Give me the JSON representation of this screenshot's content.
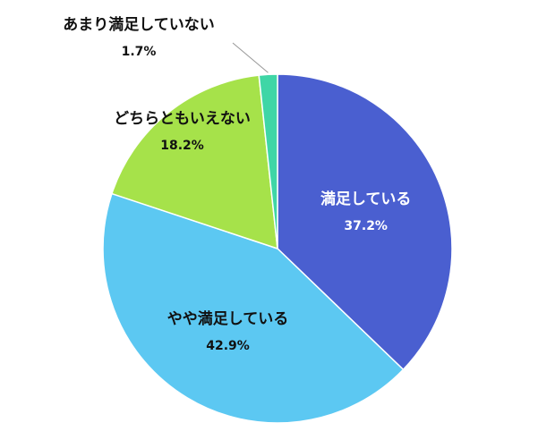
{
  "chart_data": {
    "type": "pie",
    "categories": [
      "満足している",
      "やや満足している",
      "どちらともいえない",
      "あまり満足していない"
    ],
    "values": [
      37.2,
      42.9,
      18.2,
      1.7
    ],
    "value_labels": [
      "37.2%",
      "42.9%",
      "18.2%",
      "1.7%"
    ],
    "colors": [
      "#4a5fd0",
      "#5cc8f2",
      "#a6e24a",
      "#3fd6a6"
    ]
  }
}
